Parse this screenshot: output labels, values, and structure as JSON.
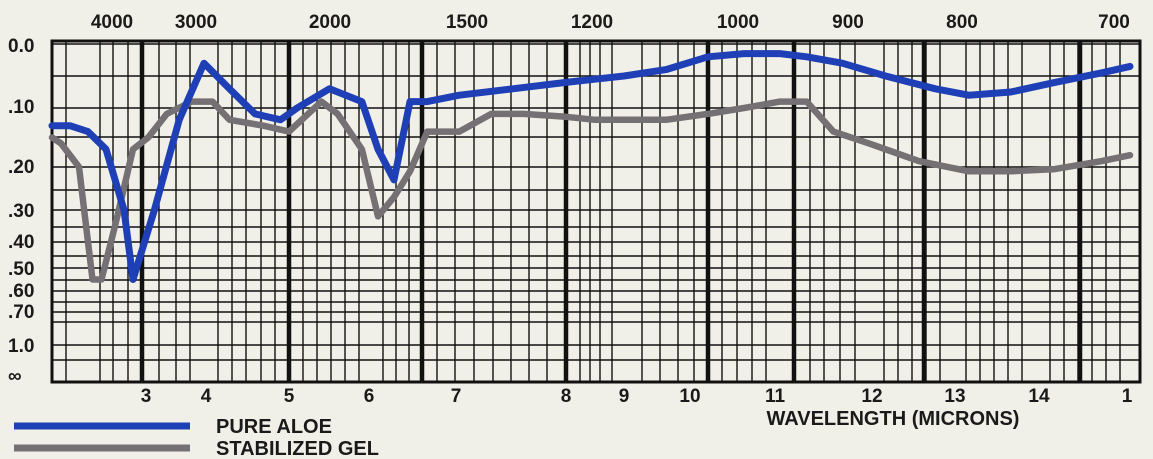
{
  "chart_data": {
    "type": "line",
    "title": "",
    "xlabel": "WAVELENGTH (MICRONS)",
    "ylabel": "",
    "top_axis_ticks": [
      "4000",
      "3000",
      "2000",
      "1500",
      "1200",
      "1000",
      "900",
      "800",
      "700"
    ],
    "bottom_axis_ticks": [
      "3",
      "4",
      "5",
      "6",
      "7",
      "8",
      "9",
      "10",
      "11",
      "12",
      "13",
      "14",
      "1"
    ],
    "y_ticks": [
      "0.0",
      ".10",
      ".20",
      ".30",
      ".40",
      ".50",
      ".60",
      ".70",
      "1.0",
      "∞"
    ],
    "xlim": [
      2.0,
      15.0
    ],
    "ylim": [
      0.0,
      "∞"
    ],
    "y_scale": "absorbance (log of transmittance)",
    "grid": true,
    "legend_position": "bottom-left",
    "series": [
      {
        "name": "PURE ALOE",
        "color": "#1f3fb6",
        "x": [
          2.0,
          2.2,
          2.4,
          2.6,
          2.8,
          2.9,
          3.2,
          3.6,
          4.0,
          4.3,
          4.6,
          4.9,
          5.1,
          5.5,
          5.9,
          6.1,
          6.3,
          6.5,
          6.7,
          7.0,
          7.5,
          8.0,
          8.5,
          9.0,
          9.5,
          10.0,
          10.5,
          11.0,
          11.3,
          11.7,
          12.2,
          12.8,
          13.2,
          13.7,
          14.2,
          14.7,
          15.0
        ],
        "y": [
          0.13,
          0.13,
          0.14,
          0.17,
          0.3,
          0.55,
          0.3,
          0.12,
          0.03,
          0.07,
          0.11,
          0.12,
          0.1,
          0.07,
          0.09,
          0.17,
          0.23,
          0.09,
          0.09,
          0.08,
          0.07,
          0.06,
          0.055,
          0.05,
          0.04,
          0.02,
          0.015,
          0.015,
          0.02,
          0.03,
          0.05,
          0.07,
          0.08,
          0.075,
          0.06,
          0.045,
          0.035
        ]
      },
      {
        "name": "STABILIZED GEL",
        "color": "#757073",
        "x": [
          2.0,
          2.1,
          2.3,
          2.45,
          2.55,
          2.7,
          2.9,
          3.1,
          3.4,
          3.8,
          4.1,
          4.3,
          4.7,
          5.0,
          5.4,
          5.6,
          5.9,
          6.1,
          6.3,
          6.5,
          6.7,
          7.0,
          7.3,
          7.6,
          8.0,
          8.5,
          9.0,
          9.5,
          10.0,
          10.5,
          11.0,
          11.3,
          11.6,
          12.0,
          12.6,
          13.2,
          13.7,
          14.2,
          14.7,
          15.0
        ],
        "y": [
          0.15,
          0.16,
          0.2,
          0.55,
          0.55,
          0.35,
          0.17,
          0.15,
          0.11,
          0.09,
          0.09,
          0.12,
          0.13,
          0.14,
          0.09,
          0.11,
          0.17,
          0.32,
          0.27,
          0.21,
          0.14,
          0.14,
          0.11,
          0.11,
          0.115,
          0.12,
          0.12,
          0.12,
          0.11,
          0.1,
          0.09,
          0.09,
          0.14,
          0.16,
          0.19,
          0.21,
          0.21,
          0.205,
          0.19,
          0.18
        ]
      }
    ]
  }
}
